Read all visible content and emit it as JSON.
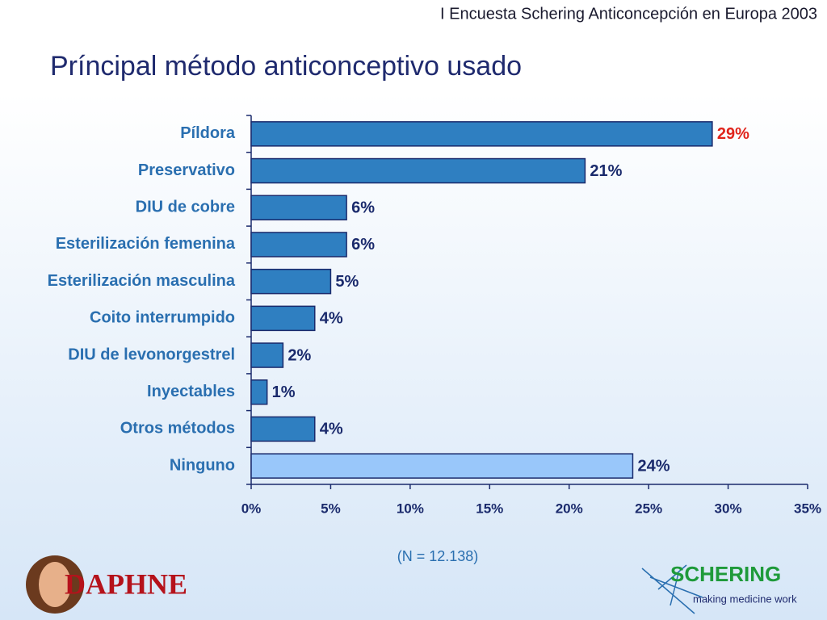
{
  "header": "I Encuesta Schering Anticoncepción en Europa 2003",
  "note": "(N = 12.138)",
  "logos": {
    "left": "DAPHNE",
    "right": "SCHERING",
    "right_tagline": "making medicine work"
  },
  "chart_data": {
    "type": "hbar",
    "title": "Príncipal método anticonceptivo usado",
    "categories": [
      "Píldora",
      "Preservativo",
      "DIU de cobre",
      "Esterilización femenina",
      "Esterilización masculina",
      "Coito interrumpido",
      "DIU de levonorgestrel",
      "Inyectables",
      "Otros métodos",
      "Ninguno"
    ],
    "values": [
      29,
      21,
      6,
      6,
      5,
      4,
      2,
      1,
      4,
      24
    ],
    "value_labels": [
      "29%",
      "21%",
      "6%",
      "6%",
      "5%",
      "4%",
      "2%",
      "1%",
      "4%",
      "24%"
    ],
    "colors": [
      "#2f7fc1",
      "#2f7fc1",
      "#2f7fc1",
      "#2f7fc1",
      "#2f7fc1",
      "#2f7fc1",
      "#2f7fc1",
      "#2f7fc1",
      "#2f7fc1",
      "#99c7fa"
    ],
    "value_label_colors": [
      "#e0241b",
      "#1a2a6c",
      "#1a2a6c",
      "#1a2a6c",
      "#1a2a6c",
      "#1a2a6c",
      "#1a2a6c",
      "#1a2a6c",
      "#1a2a6c",
      "#1a2a6c"
    ],
    "xlim": [
      0,
      35
    ],
    "xticks": [
      {
        "value": 0,
        "label": "0%"
      },
      {
        "value": 5,
        "label": "5%"
      },
      {
        "value": 10,
        "label": "10%"
      },
      {
        "value": 15,
        "label": "15%"
      },
      {
        "value": 20,
        "label": "20%"
      },
      {
        "value": 25,
        "label": "25%"
      },
      {
        "value": 30,
        "label": "30%"
      },
      {
        "value": 35,
        "label": "35%"
      }
    ]
  }
}
